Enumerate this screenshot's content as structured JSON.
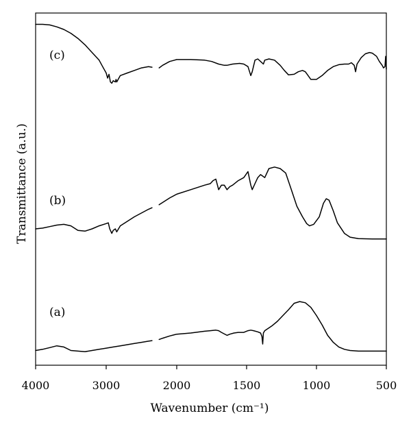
{
  "chart_data": {
    "type": "line",
    "xlabel": "Wavenumber (cm⁻¹)",
    "ylabel": "Transmittance (a.u.)",
    "xlim": [
      4000,
      500
    ],
    "x_reversed": true,
    "y_tick_labels": false,
    "grid": false,
    "x_ticks": [
      4000,
      3000,
      2000,
      1500,
      1000,
      500
    ],
    "x_tick_labels": [
      "4000",
      "3000",
      "2000",
      "1500",
      "1000",
      "500"
    ],
    "x_scale": "piecewise: 4000-2000 at half the resolution of 2000-500",
    "break_region": [
      2250,
      2150
    ],
    "series": [
      {
        "name": "(c)",
        "points": [
          [
            4000,
            96
          ],
          [
            3900,
            96
          ],
          [
            3800,
            95.5
          ],
          [
            3700,
            94
          ],
          [
            3600,
            92
          ],
          [
            3500,
            89
          ],
          [
            3400,
            85
          ],
          [
            3300,
            80
          ],
          [
            3200,
            74
          ],
          [
            3100,
            68
          ],
          [
            3050,
            63
          ],
          [
            3000,
            58
          ],
          [
            2980,
            54
          ],
          [
            2960,
            57
          ],
          [
            2940,
            51
          ],
          [
            2920,
            50
          ],
          [
            2900,
            52
          ],
          [
            2870,
            51
          ],
          [
            2860,
            53
          ],
          [
            2850,
            51
          ],
          [
            2800,
            56
          ],
          [
            2700,
            58
          ],
          [
            2600,
            60
          ],
          [
            2500,
            62
          ],
          [
            2400,
            63
          ],
          [
            2350,
            62.5
          ],
          [
            2250,
            62
          ],
          [
            2200,
            64
          ],
          [
            2100,
            67
          ],
          [
            2000,
            68.5
          ],
          [
            1900,
            68.5
          ],
          [
            1800,
            68
          ],
          [
            1750,
            67
          ],
          [
            1700,
            65
          ],
          [
            1660,
            64
          ],
          [
            1640,
            64
          ],
          [
            1600,
            65
          ],
          [
            1550,
            65.5
          ],
          [
            1520,
            65
          ],
          [
            1490,
            63
          ],
          [
            1470,
            56
          ],
          [
            1460,
            59
          ],
          [
            1440,
            68
          ],
          [
            1420,
            69
          ],
          [
            1400,
            67
          ],
          [
            1380,
            65
          ],
          [
            1370,
            68
          ],
          [
            1340,
            69
          ],
          [
            1300,
            68
          ],
          [
            1260,
            64
          ],
          [
            1230,
            60
          ],
          [
            1200,
            56.5
          ],
          [
            1160,
            57
          ],
          [
            1130,
            59
          ],
          [
            1100,
            60
          ],
          [
            1080,
            59
          ],
          [
            1060,
            56
          ],
          [
            1040,
            53
          ],
          [
            1000,
            53
          ],
          [
            960,
            56
          ],
          [
            920,
            60
          ],
          [
            880,
            63
          ],
          [
            840,
            64.5
          ],
          [
            800,
            65
          ],
          [
            770,
            65
          ],
          [
            750,
            66
          ],
          [
            730,
            64
          ],
          [
            720,
            59
          ],
          [
            710,
            65
          ],
          [
            680,
            70
          ],
          [
            650,
            73
          ],
          [
            620,
            74
          ],
          [
            600,
            73.5
          ],
          [
            570,
            71
          ],
          [
            550,
            67
          ],
          [
            530,
            64
          ],
          [
            520,
            62
          ],
          [
            510,
            63
          ],
          [
            505,
            71
          ],
          [
            500,
            61
          ]
        ]
      },
      {
        "name": "(b)",
        "points": [
          [
            4000,
            30
          ],
          [
            3900,
            30.5
          ],
          [
            3800,
            31.5
          ],
          [
            3700,
            32.5
          ],
          [
            3600,
            33
          ],
          [
            3500,
            32
          ],
          [
            3400,
            29
          ],
          [
            3300,
            28.5
          ],
          [
            3200,
            30
          ],
          [
            3100,
            32
          ],
          [
            3000,
            33.5
          ],
          [
            2970,
            34
          ],
          [
            2950,
            30
          ],
          [
            2920,
            27
          ],
          [
            2900,
            29
          ],
          [
            2870,
            30
          ],
          [
            2850,
            28
          ],
          [
            2800,
            32
          ],
          [
            2700,
            35
          ],
          [
            2600,
            38
          ],
          [
            2500,
            40.5
          ],
          [
            2400,
            43
          ],
          [
            2350,
            44
          ],
          [
            2250,
            46
          ],
          [
            2200,
            47.5
          ],
          [
            2100,
            50.5
          ],
          [
            2000,
            53
          ],
          [
            1900,
            56
          ],
          [
            1800,
            59
          ],
          [
            1760,
            60
          ],
          [
            1740,
            62
          ],
          [
            1720,
            63
          ],
          [
            1700,
            56
          ],
          [
            1680,
            59
          ],
          [
            1660,
            59
          ],
          [
            1640,
            56
          ],
          [
            1620,
            58
          ],
          [
            1600,
            59
          ],
          [
            1560,
            62
          ],
          [
            1520,
            64
          ],
          [
            1490,
            68
          ],
          [
            1470,
            59
          ],
          [
            1460,
            56
          ],
          [
            1440,
            60
          ],
          [
            1420,
            64
          ],
          [
            1400,
            66
          ],
          [
            1370,
            64
          ],
          [
            1340,
            70
          ],
          [
            1300,
            71
          ],
          [
            1260,
            70
          ],
          [
            1220,
            67
          ],
          [
            1180,
            56
          ],
          [
            1140,
            45
          ],
          [
            1100,
            38
          ],
          [
            1070,
            33.5
          ],
          [
            1050,
            32
          ],
          [
            1020,
            33
          ],
          [
            980,
            38
          ],
          [
            950,
            47
          ],
          [
            930,
            50
          ],
          [
            910,
            49
          ],
          [
            880,
            42
          ],
          [
            850,
            34
          ],
          [
            800,
            27
          ],
          [
            760,
            24.5
          ],
          [
            700,
            23.5
          ],
          [
            600,
            23.3
          ],
          [
            500,
            23.3
          ]
        ]
      },
      {
        "name": "(a)",
        "points": [
          [
            4000,
            5
          ],
          [
            3900,
            6
          ],
          [
            3800,
            7.5
          ],
          [
            3700,
            9
          ],
          [
            3600,
            8
          ],
          [
            3500,
            5
          ],
          [
            3400,
            4.5
          ],
          [
            3300,
            4
          ],
          [
            3200,
            5
          ],
          [
            3100,
            6
          ],
          [
            3000,
            7
          ],
          [
            2900,
            8
          ],
          [
            2800,
            9
          ],
          [
            2700,
            10
          ],
          [
            2600,
            11
          ],
          [
            2500,
            12
          ],
          [
            2400,
            13
          ],
          [
            2350,
            13.5
          ],
          [
            2250,
            14.5
          ],
          [
            2200,
            15.5
          ],
          [
            2100,
            17.5
          ],
          [
            2000,
            19
          ],
          [
            1900,
            20
          ],
          [
            1800,
            21.5
          ],
          [
            1760,
            22
          ],
          [
            1720,
            22.5
          ],
          [
            1700,
            22
          ],
          [
            1680,
            20.5
          ],
          [
            1640,
            18
          ],
          [
            1620,
            19
          ],
          [
            1590,
            20
          ],
          [
            1560,
            20.5
          ],
          [
            1520,
            20.5
          ],
          [
            1490,
            22
          ],
          [
            1470,
            22.5
          ],
          [
            1450,
            22
          ],
          [
            1420,
            21
          ],
          [
            1400,
            20
          ],
          [
            1390,
            17
          ],
          [
            1385,
            10.5
          ],
          [
            1380,
            20
          ],
          [
            1370,
            22
          ],
          [
            1320,
            26
          ],
          [
            1280,
            30
          ],
          [
            1240,
            35
          ],
          [
            1200,
            40
          ],
          [
            1160,
            45.5
          ],
          [
            1120,
            47
          ],
          [
            1080,
            46
          ],
          [
            1040,
            42
          ],
          [
            1000,
            35
          ],
          [
            960,
            27
          ],
          [
            920,
            18
          ],
          [
            880,
            12
          ],
          [
            840,
            8
          ],
          [
            800,
            6
          ],
          [
            760,
            5
          ],
          [
            700,
            4.5
          ],
          [
            600,
            4.5
          ],
          [
            500,
            4.5
          ]
        ]
      }
    ]
  }
}
